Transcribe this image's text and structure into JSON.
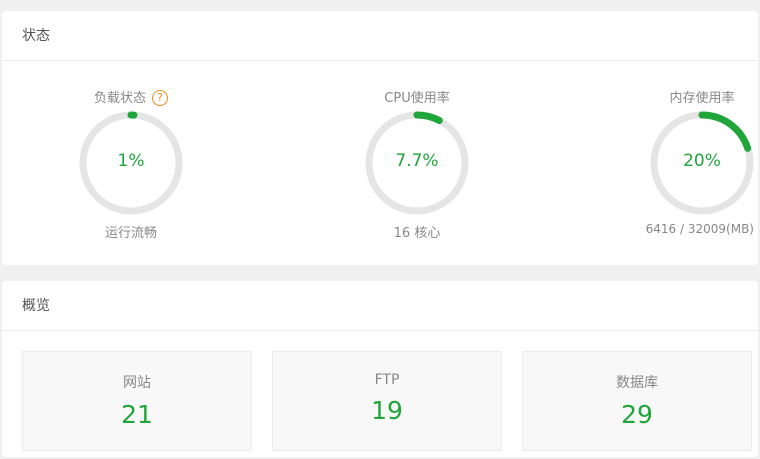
{
  "status": {
    "title": "状态",
    "gauges": [
      {
        "title": "负载状态",
        "value_text": "1%",
        "percent": 1,
        "sub": "运行流畅",
        "help_icon": "?"
      },
      {
        "title": "CPU使用率",
        "value_text": "7.7%",
        "percent": 7.7,
        "sub": "16 核心"
      },
      {
        "title": "内存使用率",
        "value_text": "20%",
        "percent": 20,
        "sub": "6416 / 32009(MB)"
      }
    ]
  },
  "overview": {
    "title": "概览",
    "items": [
      {
        "label": "网站",
        "count": "21"
      },
      {
        "label": "FTP",
        "count": "19"
      },
      {
        "label": "数据库",
        "count": "29"
      }
    ]
  },
  "colors": {
    "accent": "#20a53a",
    "track": "#e5e5e5",
    "warning": "#f0891a"
  }
}
